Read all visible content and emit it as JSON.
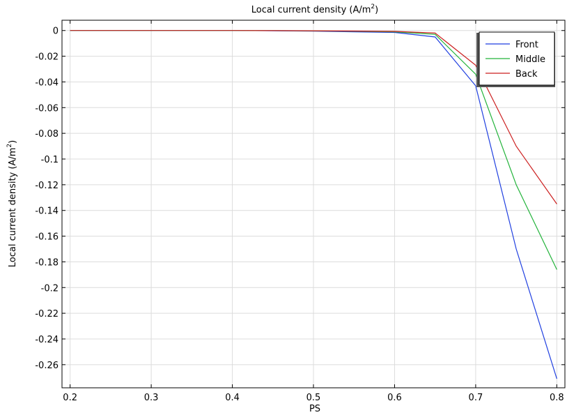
{
  "chart_data": {
    "type": "line",
    "title": "Local current density (A/m",
    "title_sup": "2",
    "title_close": ")",
    "xlabel": "PS",
    "ylabel": "Local current density (A/m",
    "ylabel_sup": "2",
    "ylabel_close": ")",
    "x": [
      0.2,
      0.25,
      0.3,
      0.35,
      0.4,
      0.45,
      0.5,
      0.55,
      0.6,
      0.65,
      0.7,
      0.75,
      0.8
    ],
    "xlim": [
      0.19,
      0.81
    ],
    "ylim": [
      -0.278,
      0.008
    ],
    "xticks": [
      0.2,
      0.3,
      0.4,
      0.5,
      0.6,
      0.7,
      0.8
    ],
    "xtick_labels": [
      "0.2",
      "0.3",
      "0.4",
      "0.5",
      "0.6",
      "0.7",
      "0.8"
    ],
    "yticks": [
      0,
      -0.02,
      -0.04,
      -0.06,
      -0.08,
      -0.1,
      -0.12,
      -0.14,
      -0.16,
      -0.18,
      -0.2,
      -0.22,
      -0.24,
      -0.26
    ],
    "ytick_labels": [
      "0",
      "-0.02",
      "-0.04",
      "-0.06",
      "-0.08",
      "-0.1",
      "-0.12",
      "-0.14",
      "-0.16",
      "-0.18",
      "-0.2",
      "-0.22",
      "-0.24",
      "-0.26"
    ],
    "grid": true,
    "legend_position": "top-right",
    "series": [
      {
        "name": "Front",
        "color": "#1f3fe0",
        "values": [
          0,
          0,
          0,
          0,
          0,
          -0.0002,
          -0.0005,
          -0.001,
          -0.0015,
          -0.005,
          -0.043,
          -0.17,
          -0.271
        ]
      },
      {
        "name": "Middle",
        "color": "#22b33a",
        "values": [
          0,
          0,
          0,
          0,
          0,
          -0.0001,
          -0.0003,
          -0.0006,
          -0.001,
          -0.003,
          -0.034,
          -0.12,
          -0.186
        ]
      },
      {
        "name": "Back",
        "color": "#cc1f1f",
        "values": [
          0,
          0,
          0,
          0,
          0,
          -0.0001,
          -0.0002,
          -0.0004,
          -0.0007,
          -0.002,
          -0.027,
          -0.09,
          -0.135
        ]
      }
    ]
  }
}
